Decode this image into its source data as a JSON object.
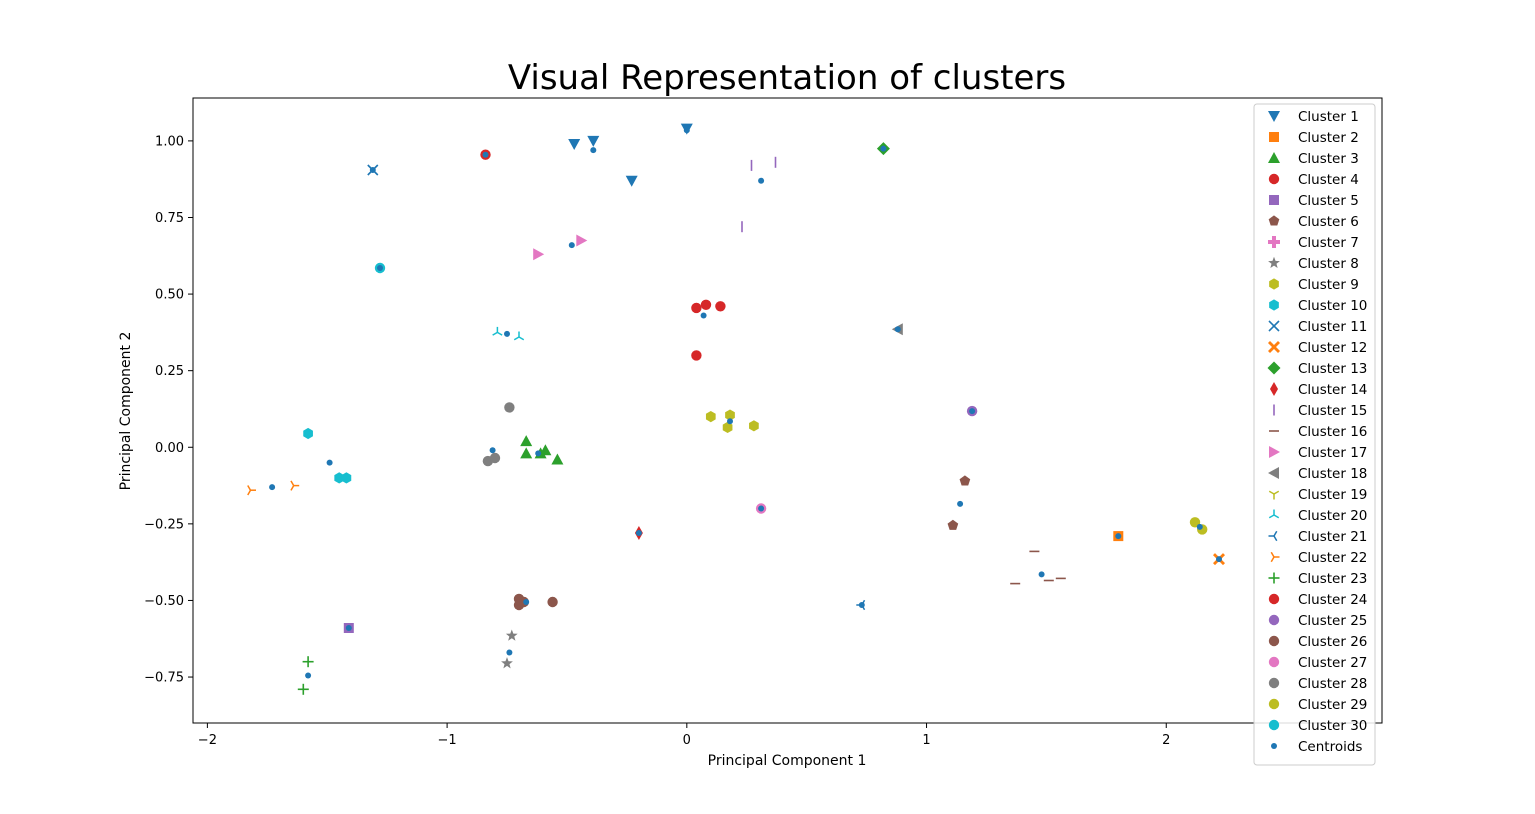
{
  "chart_data": {
    "type": "scatter",
    "title": "Visual Representation of clusters",
    "xlabel": "Principal Component 1",
    "ylabel": "Principal Component 2",
    "xlim": [
      -2.06,
      2.9
    ],
    "ylim": [
      -0.9,
      1.14
    ],
    "xticks": [
      -2,
      -1,
      0,
      1,
      2
    ],
    "yticks": [
      -0.75,
      -0.5,
      -0.25,
      0.0,
      0.25,
      0.5,
      0.75,
      1.0
    ],
    "xtick_labels": [
      "−2",
      "−1",
      "0",
      "1",
      "2"
    ],
    "ytick_labels": [
      "−0.75",
      "−0.50",
      "−0.25",
      "0.00",
      "0.25",
      "0.50",
      "0.75",
      "1.00"
    ],
    "grid": false,
    "legend_position": "right",
    "series": [
      {
        "name": "Cluster 1",
        "marker": "triangle-down",
        "color": "#1f77b4",
        "points": [
          [
            -0.47,
            0.99
          ],
          [
            -0.39,
            1.0
          ],
          [
            -0.23,
            0.87
          ]
        ]
      },
      {
        "name": "Cluster 2",
        "marker": "square",
        "color": "#ff7f0e",
        "points": [
          [
            1.8,
            -0.29
          ]
        ]
      },
      {
        "name": "Cluster 3",
        "marker": "triangle-up",
        "color": "#2ca02c",
        "points": [
          [
            -0.67,
            0.02
          ],
          [
            -0.67,
            -0.02
          ],
          [
            -0.61,
            -0.02
          ],
          [
            -0.59,
            -0.01
          ],
          [
            -0.54,
            -0.04
          ]
        ]
      },
      {
        "name": "Cluster 4",
        "marker": "circle",
        "color": "#d62728",
        "points": [
          [
            -0.84,
            0.955
          ]
        ]
      },
      {
        "name": "Cluster 5",
        "marker": "square",
        "color": "#9467bd",
        "points": [
          [
            -1.41,
            -0.59
          ]
        ]
      },
      {
        "name": "Cluster 6",
        "marker": "pentagon",
        "color": "#8c564b",
        "points": [
          [
            1.16,
            -0.11
          ],
          [
            1.11,
            -0.255
          ]
        ]
      },
      {
        "name": "Cluster 7",
        "marker": "plus-filled",
        "color": "#e377c2",
        "points": []
      },
      {
        "name": "Cluster 8",
        "marker": "star",
        "color": "#7f7f7f",
        "points": [
          [
            -0.73,
            -0.615
          ],
          [
            -0.75,
            -0.705
          ]
        ]
      },
      {
        "name": "Cluster 9",
        "marker": "hexagon",
        "color": "#bcbd22",
        "points": [
          [
            0.1,
            0.1
          ],
          [
            0.18,
            0.105
          ],
          [
            0.28,
            0.07
          ],
          [
            0.17,
            0.065
          ]
        ]
      },
      {
        "name": "Cluster 10",
        "marker": "hexagon",
        "color": "#17becf",
        "points": [
          [
            -1.58,
            0.045
          ],
          [
            -1.45,
            -0.1
          ],
          [
            -1.42,
            -0.1
          ]
        ]
      },
      {
        "name": "Cluster 11",
        "marker": "x",
        "color": "#1f77b4",
        "points": [
          [
            -1.31,
            0.905
          ]
        ]
      },
      {
        "name": "Cluster 12",
        "marker": "x-filled",
        "color": "#ff7f0e",
        "points": [
          [
            2.22,
            -0.365
          ]
        ]
      },
      {
        "name": "Cluster 13",
        "marker": "diamond",
        "color": "#2ca02c",
        "points": [
          [
            0.82,
            0.975
          ]
        ]
      },
      {
        "name": "Cluster 14",
        "marker": "thin-diamond",
        "color": "#d62728",
        "points": [
          [
            -0.2,
            -0.28
          ]
        ]
      },
      {
        "name": "Cluster 15",
        "marker": "vline",
        "color": "#9467bd",
        "points": [
          [
            0.27,
            0.92
          ],
          [
            0.37,
            0.93
          ],
          [
            0.23,
            0.72
          ]
        ]
      },
      {
        "name": "Cluster 16",
        "marker": "hline",
        "color": "#8c564b",
        "points": [
          [
            1.45,
            -0.34
          ],
          [
            1.37,
            -0.445
          ],
          [
            1.51,
            -0.435
          ],
          [
            1.56,
            -0.428
          ]
        ]
      },
      {
        "name": "Cluster 17",
        "marker": "triangle-right",
        "color": "#e377c2",
        "points": [
          [
            -0.62,
            0.63
          ],
          [
            -0.44,
            0.675
          ]
        ]
      },
      {
        "name": "Cluster 18",
        "marker": "triangle-left",
        "color": "#7f7f7f",
        "points": [
          [
            0.88,
            0.385
          ]
        ]
      },
      {
        "name": "Cluster 19",
        "marker": "tri-down",
        "color": "#bcbd22",
        "points": []
      },
      {
        "name": "Cluster 20",
        "marker": "tri-up",
        "color": "#17becf",
        "points": [
          [
            -0.79,
            0.375
          ],
          [
            -0.7,
            0.36
          ]
        ]
      },
      {
        "name": "Cluster 21",
        "marker": "tri-left",
        "color": "#1f77b4",
        "points": [
          [
            0.73,
            -0.515
          ]
        ]
      },
      {
        "name": "Cluster 22",
        "marker": "tri-right",
        "color": "#ff7f0e",
        "points": [
          [
            -1.82,
            -0.14
          ],
          [
            -1.64,
            -0.125
          ]
        ]
      },
      {
        "name": "Cluster 23",
        "marker": "plus",
        "color": "#2ca02c",
        "points": [
          [
            -1.58,
            -0.7
          ],
          [
            -1.6,
            -0.79
          ]
        ]
      },
      {
        "name": "Cluster 24",
        "marker": "circle",
        "color": "#d62728",
        "points": [
          [
            0.04,
            0.455
          ],
          [
            0.08,
            0.465
          ],
          [
            0.14,
            0.46
          ],
          [
            0.04,
            0.3
          ]
        ]
      },
      {
        "name": "Cluster 25",
        "marker": "circle",
        "color": "#9467bd",
        "points": [
          [
            1.19,
            0.118
          ]
        ]
      },
      {
        "name": "Cluster 26",
        "marker": "circle",
        "color": "#8c564b",
        "points": [
          [
            -0.7,
            -0.495
          ],
          [
            -0.7,
            -0.515
          ],
          [
            -0.68,
            -0.505
          ],
          [
            -0.56,
            -0.505
          ]
        ]
      },
      {
        "name": "Cluster 27",
        "marker": "circle",
        "color": "#e377c2",
        "points": [
          [
            0.31,
            -0.2
          ]
        ]
      },
      {
        "name": "Cluster 28",
        "marker": "circle",
        "color": "#7f7f7f",
        "points": [
          [
            -0.74,
            0.13
          ],
          [
            -0.83,
            -0.045
          ],
          [
            -0.8,
            -0.035
          ]
        ]
      },
      {
        "name": "Cluster 29",
        "marker": "circle",
        "color": "#bcbd22",
        "points": [
          [
            2.12,
            -0.245
          ],
          [
            2.15,
            -0.268
          ]
        ]
      },
      {
        "name": "Cluster 30",
        "marker": "circle",
        "color": "#17becf",
        "points": [
          [
            -1.28,
            0.585
          ]
        ]
      },
      {
        "name": "Centroids",
        "marker": "small-circle",
        "color": "#1f77b4",
        "points": [
          [
            -0.39,
            0.97
          ],
          [
            0.0,
            1.035
          ],
          [
            -0.84,
            0.955
          ],
          [
            -1.31,
            0.905
          ],
          [
            0.31,
            0.87
          ],
          [
            0.82,
            0.975
          ],
          [
            -0.48,
            0.66
          ],
          [
            -1.28,
            0.585
          ],
          [
            0.07,
            0.43
          ],
          [
            -0.75,
            0.37
          ],
          [
            0.88,
            0.385
          ],
          [
            0.18,
            0.085
          ],
          [
            1.19,
            0.118
          ],
          [
            -0.81,
            -0.01
          ],
          [
            -0.62,
            -0.02
          ],
          [
            -1.49,
            -0.05
          ],
          [
            -1.73,
            -0.13
          ],
          [
            1.14,
            -0.185
          ],
          [
            0.31,
            -0.2
          ],
          [
            -0.2,
            -0.28
          ],
          [
            1.8,
            -0.29
          ],
          [
            2.14,
            -0.26
          ],
          [
            2.22,
            -0.365
          ],
          [
            1.48,
            -0.415
          ],
          [
            0.73,
            -0.515
          ],
          [
            -0.67,
            -0.505
          ],
          [
            -1.41,
            -0.59
          ],
          [
            -0.74,
            -0.67
          ],
          [
            -1.58,
            -0.745
          ]
        ]
      },
      {
        "name": "",
        "marker": "triangle-down",
        "color": "#1f77b4",
        "points": [
          [
            0.0,
            1.04
          ]
        ]
      }
    ]
  }
}
